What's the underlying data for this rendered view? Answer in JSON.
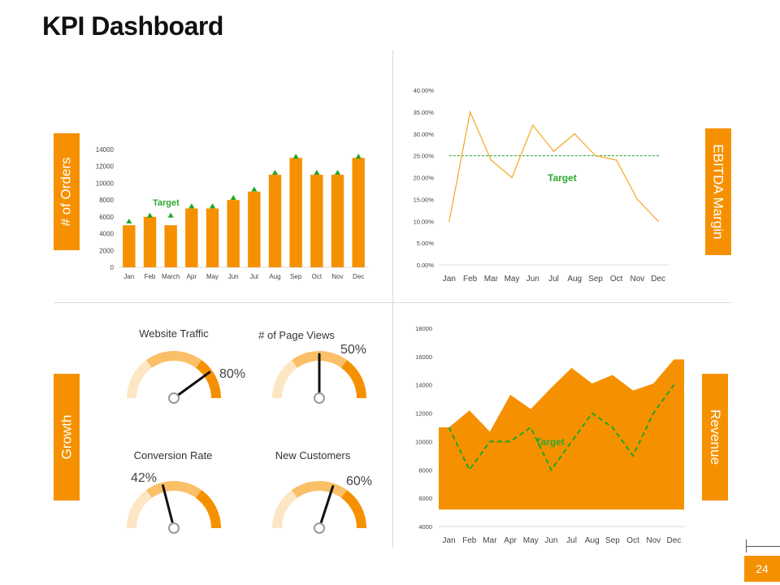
{
  "title": "KPI Dashboard",
  "page_number": "24",
  "colors": {
    "orange": "#f59100",
    "orange_light": "#fbbf68",
    "orange_pale": "#fde6c4",
    "green": "#1fa51f",
    "target_green": "#2ea82e"
  },
  "side_labels": {
    "orders": "# of Orders",
    "ebitda": "EBITDA Margin",
    "growth": "Growth",
    "revenue": "Revenue"
  },
  "chart_data": [
    {
      "id": "orders",
      "type": "bar",
      "title": "# of Orders",
      "categories": [
        "Jan",
        "Feb",
        "March",
        "Apr",
        "May",
        "Jun",
        "Jul",
        "Aug",
        "Sep",
        "Oct",
        "Nov",
        "Dec"
      ],
      "values": [
        5000,
        6000,
        5000,
        7000,
        7000,
        8000,
        9000,
        11000,
        13000,
        11000,
        11000,
        13000
      ],
      "targets": [
        5500,
        6200,
        6200,
        7300,
        7300,
        8300,
        9300,
        11300,
        13200,
        11300,
        11300,
        13200
      ],
      "target_label": "Target",
      "yticks": [
        "0",
        "2000",
        "4000",
        "6000",
        "8000",
        "10000",
        "12000",
        "14000"
      ],
      "ylim": [
        0,
        14000
      ]
    },
    {
      "id": "ebitda",
      "type": "line",
      "title": "EBITDA Margin",
      "categories": [
        "Jan",
        "Feb",
        "Mar",
        "May",
        "Jun",
        "Jul",
        "Aug",
        "Sep",
        "Oct",
        "Nov",
        "Dec"
      ],
      "values": [
        10,
        35,
        24,
        20,
        32,
        26,
        30,
        25,
        24,
        15,
        10
      ],
      "target": 25,
      "target_label": "Target",
      "yticks": [
        "0.00%",
        "5.00%",
        "10.00%",
        "15.00%",
        "20.00%",
        "25.00%",
        "30.00%",
        "35.00%",
        "40.00%"
      ],
      "ylim": [
        0,
        40
      ]
    },
    {
      "id": "revenue",
      "type": "area",
      "title": "Revenue",
      "categories": [
        "Jan",
        "Feb",
        "Mar",
        "Apr",
        "May",
        "Jun",
        "Jul",
        "Aug",
        "Sep",
        "Oct",
        "Nov",
        "Dec"
      ],
      "values": [
        11000,
        12200,
        10700,
        13300,
        12300,
        13800,
        15200,
        14100,
        14700,
        13600,
        14100,
        15800
      ],
      "targets": [
        11000,
        8000,
        10000,
        10000,
        11000,
        8000,
        10000,
        12000,
        11000,
        9000,
        12000,
        14000
      ],
      "target_label": "Target",
      "yticks": [
        "4000",
        "6000",
        "8000",
        "10000",
        "12000",
        "14000",
        "16000",
        "18000"
      ],
      "ylim": [
        4000,
        18000
      ]
    },
    {
      "id": "gauges",
      "type": "gauge",
      "section_title": "Growth",
      "gauges": [
        {
          "label": "Website Traffic",
          "value": 80,
          "value_text": "80%"
        },
        {
          "label": "# of Page Views",
          "value": 50,
          "value_text": "50%"
        },
        {
          "label": "Conversion Rate",
          "value": 42,
          "value_text": "42%"
        },
        {
          "label": "New Customers",
          "value": 60,
          "value_text": "60%"
        }
      ]
    }
  ]
}
